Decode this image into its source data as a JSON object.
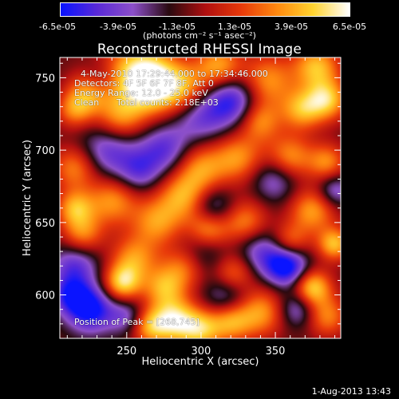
{
  "colorbar": {
    "tick_labels": [
      "-6.5e-05",
      "-3.9e-05",
      "-1.3e-05",
      "1.3e-05",
      "3.9e-05",
      "6.5e-05"
    ],
    "unit_label": "(photons cm⁻² s⁻¹ asec⁻²)",
    "colors": [
      "#0a14ff",
      "#5a2ad8",
      "#8d50c9",
      "#2a0a10",
      "#b01010",
      "#e83a0a",
      "#ff8a10",
      "#ffd430",
      "#ffffff"
    ]
  },
  "title": "Reconstructed RHESSI Image",
  "annotations": {
    "time_range": "4-May-2010 17:29:44.000 to 17:34:46.000",
    "detectors": "Detectors: 4F 5F 6F 7F 8F, Att 0",
    "energy_range": "Energy Range: 12.0 - 25.0 keV",
    "method": "Clean",
    "total_counts": "Total counts: 2.18E+03",
    "peak": "Position of Peak = [268,745]"
  },
  "footer": "1-Aug-2013 13:43",
  "chart_data": {
    "type": "heatmap",
    "title": "Reconstructed RHESSI Image",
    "xlabel": "Heliocentric X (arcsec)",
    "ylabel": "Heliocentric Y (arcsec)",
    "xlim": [
      205,
      394
    ],
    "ylim": [
      570,
      764
    ],
    "x_ticks": [
      250,
      300,
      350
    ],
    "y_ticks": [
      600,
      650,
      700,
      750
    ],
    "colorbar_range": [
      -6.5e-05,
      6.5e-05
    ],
    "peak_position": [
      268,
      745
    ],
    "blobs": [
      {
        "x": 268,
        "y": 745,
        "v": 6.5e-05,
        "r": 14
      },
      {
        "x": 255,
        "y": 755,
        "v": 4.6e-05,
        "r": 16
      },
      {
        "x": 225,
        "y": 742,
        "v": 5e-05,
        "r": 10
      },
      {
        "x": 215,
        "y": 728,
        "v": 4e-05,
        "r": 9
      },
      {
        "x": 245,
        "y": 722,
        "v": 4.5e-05,
        "r": 12
      },
      {
        "x": 290,
        "y": 742,
        "v": 4.2e-05,
        "r": 12
      },
      {
        "x": 312,
        "y": 758,
        "v": 4.8e-05,
        "r": 11
      },
      {
        "x": 345,
        "y": 748,
        "v": 4.4e-05,
        "r": 13
      },
      {
        "x": 378,
        "y": 758,
        "v": 5.2e-05,
        "r": 11
      },
      {
        "x": 385,
        "y": 735,
        "v": 5.5e-05,
        "r": 10
      },
      {
        "x": 368,
        "y": 728,
        "v": 4.6e-05,
        "r": 10
      },
      {
        "x": 340,
        "y": 720,
        "v": 4e-05,
        "r": 10
      },
      {
        "x": 325,
        "y": 695,
        "v": 4.3e-05,
        "r": 12
      },
      {
        "x": 360,
        "y": 695,
        "v": 4.5e-05,
        "r": 11
      },
      {
        "x": 385,
        "y": 692,
        "v": 4e-05,
        "r": 9
      },
      {
        "x": 300,
        "y": 688,
        "v": 4.2e-05,
        "r": 12
      },
      {
        "x": 288,
        "y": 668,
        "v": 4.6e-05,
        "r": 12
      },
      {
        "x": 215,
        "y": 688,
        "v": 4.2e-05,
        "r": 11
      },
      {
        "x": 240,
        "y": 665,
        "v": 4.4e-05,
        "r": 12
      },
      {
        "x": 215,
        "y": 660,
        "v": 4.6e-05,
        "r": 9
      },
      {
        "x": 220,
        "y": 642,
        "v": 4e-05,
        "r": 10
      },
      {
        "x": 270,
        "y": 650,
        "v": 4.3e-05,
        "r": 12
      },
      {
        "x": 305,
        "y": 645,
        "v": 5e-05,
        "r": 10
      },
      {
        "x": 330,
        "y": 650,
        "v": 4.2e-05,
        "r": 11
      },
      {
        "x": 375,
        "y": 658,
        "v": 4.6e-05,
        "r": 11
      },
      {
        "x": 390,
        "y": 635,
        "v": 5.3e-05,
        "r": 8
      },
      {
        "x": 360,
        "y": 636,
        "v": 4e-05,
        "r": 9
      },
      {
        "x": 255,
        "y": 625,
        "v": 4.2e-05,
        "r": 11
      },
      {
        "x": 290,
        "y": 620,
        "v": 4.5e-05,
        "r": 11
      },
      {
        "x": 322,
        "y": 615,
        "v": 4.2e-05,
        "r": 10
      },
      {
        "x": 247,
        "y": 608,
        "v": 5.8e-05,
        "r": 9
      },
      {
        "x": 275,
        "y": 605,
        "v": 4.4e-05,
        "r": 10
      },
      {
        "x": 375,
        "y": 605,
        "v": 6e-05,
        "r": 9
      },
      {
        "x": 340,
        "y": 588,
        "v": 4.6e-05,
        "r": 12
      },
      {
        "x": 282,
        "y": 582,
        "v": 6.2e-05,
        "r": 11
      },
      {
        "x": 300,
        "y": 576,
        "v": 5e-05,
        "r": 10
      },
      {
        "x": 320,
        "y": 582,
        "v": 4.8e-05,
        "r": 10
      },
      {
        "x": 265,
        "y": 578,
        "v": 4.4e-05,
        "r": 9
      },
      {
        "x": 385,
        "y": 585,
        "v": 4e-05,
        "r": 10
      },
      {
        "x": 300,
        "y": 725,
        "v": -3.8e-05,
        "r": 14
      },
      {
        "x": 322,
        "y": 735,
        "v": -4.5e-05,
        "r": 12
      },
      {
        "x": 238,
        "y": 700,
        "v": -4e-05,
        "r": 14
      },
      {
        "x": 275,
        "y": 700,
        "v": -3.8e-05,
        "r": 12
      },
      {
        "x": 230,
        "y": 748,
        "v": -3e-05,
        "r": 9
      },
      {
        "x": 350,
        "y": 680,
        "v": -3.2e-05,
        "r": 11
      },
      {
        "x": 308,
        "y": 660,
        "v": -3.5e-05,
        "r": 10
      },
      {
        "x": 258,
        "y": 685,
        "v": -3e-05,
        "r": 10
      },
      {
        "x": 300,
        "y": 628,
        "v": -3.5e-05,
        "r": 12
      },
      {
        "x": 340,
        "y": 630,
        "v": -3.5e-05,
        "r": 12
      },
      {
        "x": 358,
        "y": 620,
        "v": -6.5e-05,
        "r": 10
      },
      {
        "x": 215,
        "y": 620,
        "v": -3.8e-05,
        "r": 11
      },
      {
        "x": 225,
        "y": 590,
        "v": -6e-05,
        "r": 11
      },
      {
        "x": 212,
        "y": 600,
        "v": -4e-05,
        "r": 9
      },
      {
        "x": 318,
        "y": 598,
        "v": -3.5e-05,
        "r": 11
      },
      {
        "x": 250,
        "y": 585,
        "v": -3e-05,
        "r": 9
      },
      {
        "x": 390,
        "y": 672,
        "v": -3.2e-05,
        "r": 8
      },
      {
        "x": 365,
        "y": 590,
        "v": -3.4e-05,
        "r": 9
      }
    ]
  }
}
